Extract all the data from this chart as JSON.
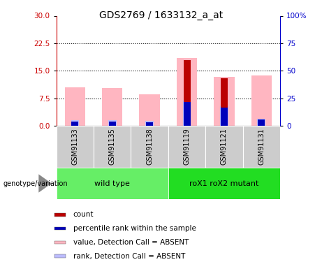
{
  "title": "GDS2769 / 1633132_a_at",
  "samples": [
    "GSM91133",
    "GSM91135",
    "GSM91138",
    "GSM91119",
    "GSM91121",
    "GSM91131"
  ],
  "pink_values": [
    10.5,
    10.2,
    8.5,
    18.5,
    13.3,
    13.7
  ],
  "light_blue_values": [
    1.5,
    1.5,
    1.3,
    6.8,
    5.3,
    2.0
  ],
  "red_values": [
    1.0,
    1.0,
    0.3,
    18.0,
    13.0,
    0.0
  ],
  "blue_values": [
    1.2,
    1.2,
    1.0,
    6.5,
    5.0,
    1.8
  ],
  "ylim_left": [
    0,
    30
  ],
  "ylim_right": [
    0,
    100
  ],
  "yticks_left": [
    0,
    7.5,
    15,
    22.5,
    30
  ],
  "yticks_right": [
    0,
    25,
    50,
    75,
    100
  ],
  "grid_lines": [
    7.5,
    15,
    22.5
  ],
  "pink_color": "#FFB6C1",
  "light_blue_color": "#BBBBFF",
  "red_color": "#BB0000",
  "blue_color": "#0000BB",
  "left_axis_color": "#CC0000",
  "right_axis_color": "#0000CC",
  "wt_color": "#66EE66",
  "mut_color": "#22DD22",
  "sample_bg": "#CCCCCC",
  "genotype_label": "genotype/variation",
  "legend_items": [
    {
      "label": "count",
      "color": "#BB0000"
    },
    {
      "label": "percentile rank within the sample",
      "color": "#0000BB"
    },
    {
      "label": "value, Detection Call = ABSENT",
      "color": "#FFB6C1"
    },
    {
      "label": "rank, Detection Call = ABSENT",
      "color": "#BBBBFF"
    }
  ]
}
